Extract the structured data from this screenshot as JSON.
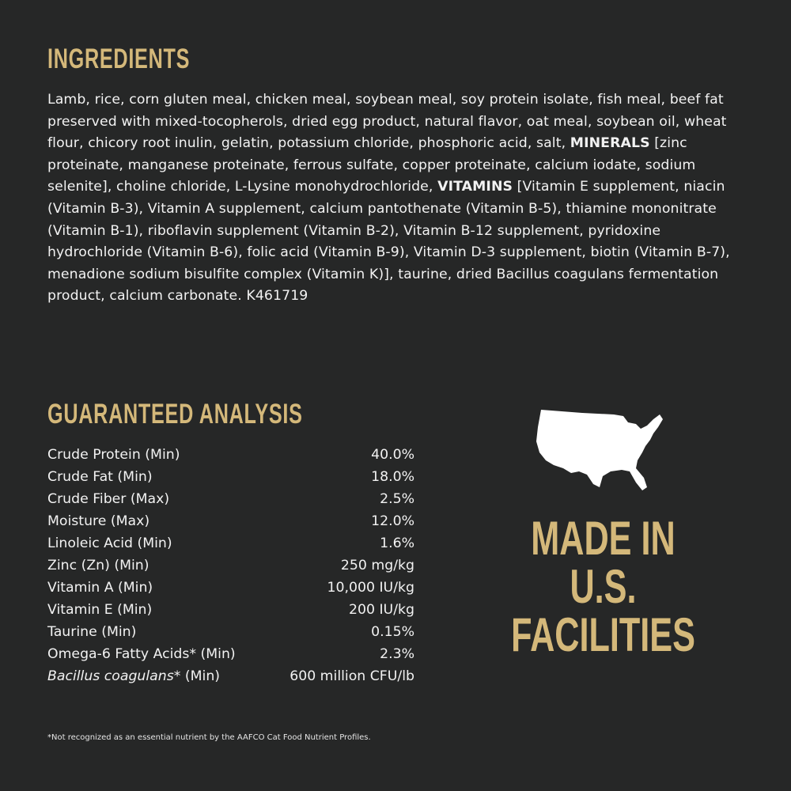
{
  "ingredients": {
    "title": "INGREDIENTS",
    "text_1": "Lamb, rice, corn gluten meal, chicken meal, soybean meal, soy protein isolate, fish meal, beef fat preserved with mixed-tocopherols, dried egg product, natural flavor, oat meal, soybean oil, wheat flour, chicory root inulin, gelatin, potassium chloride, phosphoric acid, salt, ",
    "minerals_label": "MINERALS",
    "text_2": " [zinc proteinate, manganese proteinate, ferrous sulfate, copper proteinate, calcium iodate, sodium selenite], choline chloride, L-Lysine monohydrochloride, ",
    "vitamins_label": "VITAMINS",
    "text_3": " [Vitamin E supplement, niacin (Vitamin B-3), Vitamin A supplement, calcium pantothenate (Vitamin B-5), thiamine mononitrate (Vitamin B-1), riboflavin supplement (Vitamin B-2), Vitamin B-12 supplement, pyridoxine hydrochloride (Vitamin B-6), folic acid (Vitamin B-9), Vitamin D-3 supplement, biotin (Vitamin B-7), menadione sodium bisulfite complex (Vitamin K)], taurine, dried Bacillus coagulans fermentation product, calcium carbonate. K461719"
  },
  "analysis": {
    "title": "GUARANTEED ANALYSIS",
    "rows": [
      {
        "label": "Crude Protein (Min)",
        "value": "40.0%"
      },
      {
        "label": "Crude Fat (Min)",
        "value": "18.0%"
      },
      {
        "label": "Crude Fiber (Max)",
        "value": "2.5%"
      },
      {
        "label": "Moisture (Max)",
        "value": "12.0%"
      },
      {
        "label": "Linoleic Acid (Min)",
        "value": "1.6%"
      },
      {
        "label": "Zinc (Zn) (Min)",
        "value": "250 mg/kg"
      },
      {
        "label": "Vitamin A (Min)",
        "value": "10,000 IU/kg"
      },
      {
        "label": "Vitamin E (Min)",
        "value": "200 IU/kg"
      },
      {
        "label": "Taurine (Min)",
        "value": "0.15%"
      },
      {
        "label": "Omega-6 Fatty Acids* (Min)",
        "value": "2.3%"
      }
    ],
    "last_row": {
      "label_italic": "Bacillus coagulans",
      "label_rest": "* (Min)",
      "value": "600 million CFU/lb"
    }
  },
  "badge": {
    "icon": "usa-map-icon",
    "lines": [
      "MADE IN",
      "U.S.",
      "FACILITIES"
    ]
  },
  "footnote": "*Not recognized as an essential nutrient by the AAFCO Cat Food Nutrient Profiles.",
  "colors": {
    "background": "#262727",
    "accent": "#d4b87a",
    "text": "#f2f2f2"
  }
}
